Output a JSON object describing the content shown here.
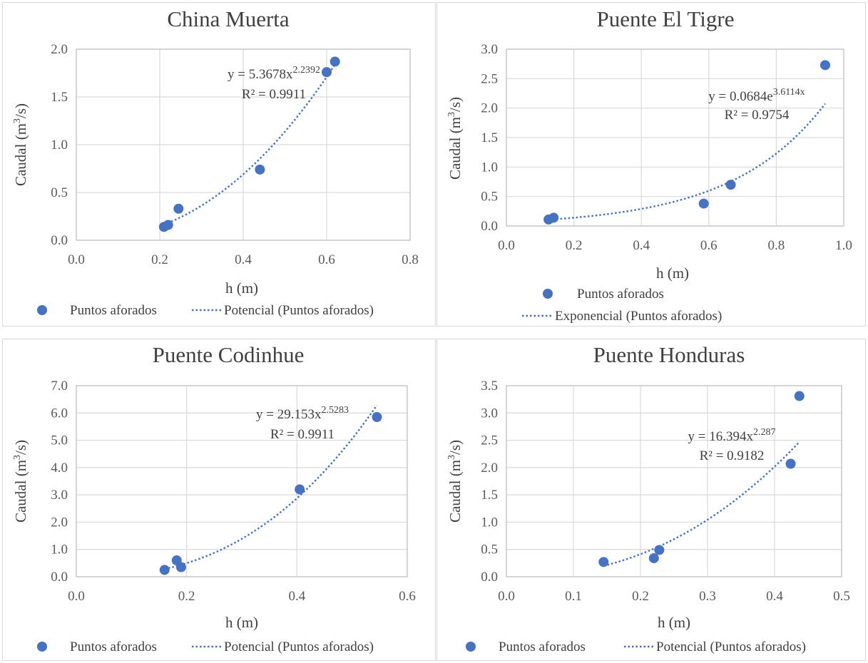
{
  "chart_data": [
    {
      "type": "scatter",
      "title": "China Muerta",
      "xlabel": "h (m)",
      "ylabel_prefix": "Caudal (m",
      "ylabel_sup": "3",
      "ylabel_suffix": "/s)",
      "xlim": [
        0,
        0.8
      ],
      "ylim": [
        0,
        2.0
      ],
      "xticks": [
        "0.0",
        "0.2",
        "0.4",
        "0.6",
        "0.8"
      ],
      "yticks": [
        "0.0",
        "0.5",
        "1.0",
        "1.5",
        "2.0"
      ],
      "series": [
        {
          "name": "Puntos aforados",
          "x": [
            0.21,
            0.22,
            0.245,
            0.44,
            0.6,
            0.62
          ],
          "y": [
            0.14,
            0.16,
            0.33,
            0.74,
            1.76,
            1.87
          ]
        }
      ],
      "trendline": {
        "kind": "power",
        "a": 5.3678,
        "b": 2.2392,
        "name": "Potencial (Puntos aforados)"
      },
      "equation": {
        "line1": "y = 5.3678x",
        "sup": "2.2392",
        "r2": "R² = 0.9911"
      },
      "legend": {
        "layout": "single-row",
        "marker_label": "Puntos aforados",
        "trend_label": "Potencial (Puntos aforados)"
      }
    },
    {
      "type": "scatter",
      "title": "Puente El Tigre",
      "xlabel": "h (m)",
      "ylabel_prefix": "Caudal (m",
      "ylabel_sup": "3",
      "ylabel_suffix": "/s)",
      "xlim": [
        0,
        1.0
      ],
      "ylim": [
        0,
        3.0
      ],
      "xticks": [
        "0.0",
        "0.2",
        "0.4",
        "0.6",
        "0.8",
        "1.0"
      ],
      "yticks": [
        "0.0",
        "0.5",
        "1.0",
        "1.5",
        "2.0",
        "2.5",
        "3.0"
      ],
      "series": [
        {
          "name": "Puntos aforados",
          "x": [
            0.125,
            0.14,
            0.585,
            0.665,
            0.945
          ],
          "y": [
            0.11,
            0.14,
            0.38,
            0.7,
            2.73
          ]
        }
      ],
      "trendline": {
        "kind": "exponential",
        "a": 0.0684,
        "b": 3.6114,
        "name": "Exponencial (Puntos aforados)"
      },
      "equation": {
        "line1": "y = 0.0684e",
        "sup": "3.6114x",
        "r2": "R² = 0.9754"
      },
      "legend": {
        "layout": "two-rows",
        "marker_label": "Puntos aforados",
        "trend_label": "Exponencial (Puntos aforados)"
      }
    },
    {
      "type": "scatter",
      "title": "Puente Codinhue",
      "xlabel": "h (m)",
      "ylabel_prefix": "Caudal (m",
      "ylabel_sup": "3",
      "ylabel_suffix": "/s)",
      "xlim": [
        0,
        0.6
      ],
      "ylim": [
        0,
        7.0
      ],
      "xticks": [
        "0.0",
        "0.2",
        "0.4",
        "0.6"
      ],
      "yticks": [
        "0.0",
        "1.0",
        "2.0",
        "3.0",
        "4.0",
        "5.0",
        "6.0",
        "7.0"
      ],
      "series": [
        {
          "name": "Puntos aforados",
          "x": [
            0.16,
            0.182,
            0.19,
            0.405,
            0.545
          ],
          "y": [
            0.25,
            0.6,
            0.35,
            3.2,
            5.85
          ]
        }
      ],
      "trendline": {
        "kind": "power",
        "a": 29.153,
        "b": 2.5283,
        "name": "Potencial (Puntos aforados)"
      },
      "equation": {
        "line1": "y = 29.153x",
        "sup": "2.5283",
        "r2": "R² = 0.9911"
      },
      "legend": {
        "layout": "single-row",
        "marker_label": "Puntos aforados",
        "trend_label": "Potencial (Puntos aforados)"
      }
    },
    {
      "type": "scatter",
      "title": "Puente Honduras",
      "xlabel": "h (m)",
      "ylabel_prefix": "Caudal (m",
      "ylabel_sup": "3",
      "ylabel_suffix": "/s)",
      "xlim": [
        0,
        0.5
      ],
      "ylim": [
        0,
        3.5
      ],
      "xticks": [
        "0.0",
        "0.1",
        "0.2",
        "0.3",
        "0.4",
        "0.5"
      ],
      "yticks": [
        "0.0",
        "0.5",
        "1.0",
        "1.5",
        "2.0",
        "2.5",
        "3.0",
        "3.5"
      ],
      "series": [
        {
          "name": "Puntos aforados",
          "x": [
            0.145,
            0.22,
            0.228,
            0.424,
            0.437
          ],
          "y": [
            0.27,
            0.34,
            0.49,
            2.07,
            3.31
          ]
        }
      ],
      "trendline": {
        "kind": "power",
        "a": 16.394,
        "b": 2.287,
        "name": "Potencial (Puntos aforados)"
      },
      "equation": {
        "line1": "y = 16.394x",
        "sup": "2.287",
        "r2": "R² = 0.9182"
      },
      "legend": {
        "layout": "single-row",
        "marker_label": "Puntos aforados",
        "trend_label": "Potencial (Puntos aforados)"
      }
    }
  ]
}
